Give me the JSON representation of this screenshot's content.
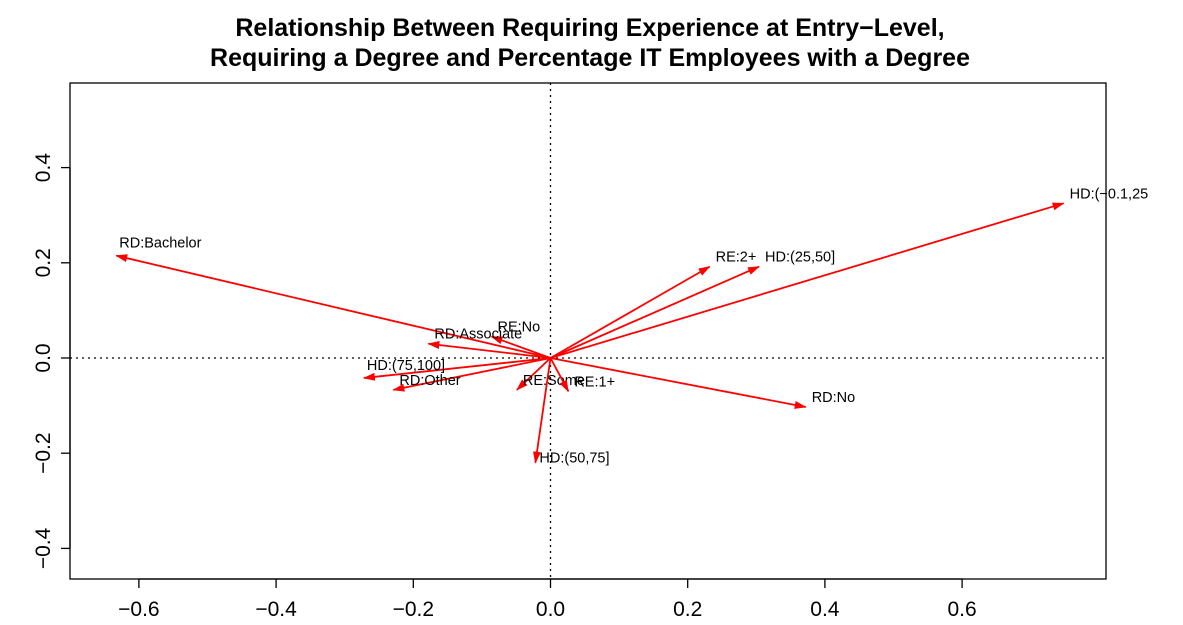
{
  "chart_data": {
    "type": "biplot",
    "title": [
      "Relationship Between Requiring Experience at Entry−Level,",
      "Requiring a Degree and Percentage IT Employees with a Degree"
    ],
    "xlabel": "",
    "ylabel": "",
    "xlim": [
      -0.7,
      0.8
    ],
    "ylim": [
      -0.47,
      0.57
    ],
    "x_ticks": [
      -0.6,
      -0.4,
      -0.2,
      0.0,
      0.2,
      0.4,
      0.6
    ],
    "x_tick_labels": [
      "−0.6",
      "−0.4",
      "−0.2",
      "0.0",
      "0.2",
      "0.4",
      "0.6"
    ],
    "y_ticks": [
      -0.4,
      -0.2,
      0.0,
      0.2,
      0.4
    ],
    "y_tick_labels": [
      "−0.4",
      "−0.2",
      "0.0",
      "0.2",
      "0.4"
    ],
    "reference_lines": {
      "x": 0,
      "y": 0,
      "style": "dotted"
    },
    "arrow_color": "#ff0000",
    "vectors": [
      {
        "label": "RD:Bachelor",
        "x": -0.633,
        "y": 0.215
      },
      {
        "label": "HD:(−0.1,25",
        "x": 0.748,
        "y": 0.325
      },
      {
        "label": "RE:2+",
        "x": 0.232,
        "y": 0.192
      },
      {
        "label": "HD:(25,50]",
        "x": 0.304,
        "y": 0.192
      },
      {
        "label": "RE:No",
        "x": -0.086,
        "y": 0.045
      },
      {
        "label": "RD:Associate",
        "x": -0.178,
        "y": 0.03
      },
      {
        "label": "HD:(75,100]",
        "x": -0.272,
        "y": -0.042
      },
      {
        "label": "RD:Other",
        "x": -0.229,
        "y": -0.067
      },
      {
        "label": "RE:Some",
        "x": -0.049,
        "y": -0.067
      },
      {
        "label": "RE:1+",
        "x": 0.026,
        "y": -0.07
      },
      {
        "label": "RD:No",
        "x": 0.372,
        "y": -0.103
      },
      {
        "label": "HD:(50,75]",
        "x": -0.022,
        "y": -0.22
      }
    ]
  }
}
